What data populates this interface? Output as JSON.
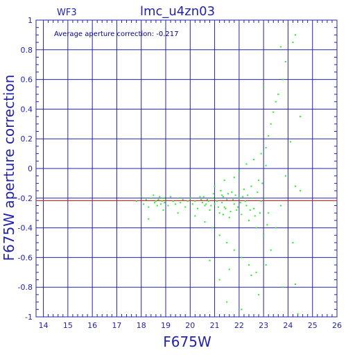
{
  "chart_data": {
    "type": "scatter",
    "title": "lmc_u4zn03",
    "panel_label": "WF3",
    "annotation": "Average aperture correction: -0.217",
    "xlabel": "F675W",
    "ylabel": "F675W  aperture  correction",
    "xlim": [
      13.7,
      26
    ],
    "ylim": [
      -1,
      1
    ],
    "xticks": [
      14,
      15,
      16,
      17,
      18,
      19,
      20,
      21,
      22,
      23,
      24,
      25,
      26
    ],
    "yticks": [
      -1,
      -0.8,
      -0.6,
      -0.4,
      -0.2,
      0,
      0.2,
      0.4,
      0.6,
      0.8,
      1
    ],
    "grid": true,
    "average_line": -0.217,
    "colors": {
      "axes": "#2222aa",
      "points": "#22ee22",
      "average_line": "#cc2222",
      "background": "#ffffff"
    },
    "points": [
      [
        17.8,
        -0.22
      ],
      [
        18.0,
        -0.19
      ],
      [
        18.1,
        -0.24
      ],
      [
        18.2,
        -0.21
      ],
      [
        18.3,
        -0.26
      ],
      [
        18.4,
        -0.2
      ],
      [
        18.5,
        -0.18
      ],
      [
        18.55,
        -0.23
      ],
      [
        18.6,
        -0.22
      ],
      [
        18.65,
        -0.25
      ],
      [
        18.7,
        -0.21
      ],
      [
        18.75,
        -0.19
      ],
      [
        18.8,
        -0.24
      ],
      [
        18.85,
        -0.22
      ],
      [
        18.9,
        -0.2
      ],
      [
        18.95,
        -0.23
      ],
      [
        19.0,
        -0.21
      ],
      [
        19.1,
        -0.25
      ],
      [
        19.2,
        -0.19
      ],
      [
        19.3,
        -0.22
      ],
      [
        19.4,
        -0.24
      ],
      [
        19.5,
        -0.2
      ],
      [
        19.6,
        -0.23
      ],
      [
        19.7,
        -0.21
      ],
      [
        19.8,
        -0.26
      ],
      [
        19.9,
        -0.22
      ],
      [
        20.0,
        -0.2
      ],
      [
        20.1,
        -0.24
      ],
      [
        20.2,
        -0.22
      ],
      [
        20.3,
        -0.27
      ],
      [
        20.4,
        -0.19
      ],
      [
        20.5,
        -0.23
      ],
      [
        20.6,
        -0.25
      ],
      [
        20.7,
        -0.21
      ],
      [
        20.8,
        -0.28
      ],
      [
        20.9,
        -0.2
      ],
      [
        21.0,
        -0.24
      ],
      [
        21.1,
        -0.22
      ],
      [
        21.2,
        -0.3
      ],
      [
        21.3,
        -0.18
      ],
      [
        21.4,
        -0.26
      ],
      [
        21.5,
        -0.21
      ],
      [
        21.6,
        -0.33
      ],
      [
        21.7,
        -0.16
      ],
      [
        21.8,
        -0.24
      ],
      [
        21.9,
        -0.28
      ],
      [
        22.0,
        -0.2
      ],
      [
        22.1,
        -0.31
      ],
      [
        22.2,
        -0.14
      ],
      [
        22.3,
        -0.25
      ],
      [
        22.4,
        -0.35
      ],
      [
        22.5,
        -0.12
      ],
      [
        22.6,
        -0.27
      ],
      [
        22.7,
        -0.4
      ],
      [
        22.8,
        -0.08
      ],
      [
        22.9,
        -0.22
      ],
      [
        23.0,
        -0.45
      ],
      [
        23.1,
        0.02
      ],
      [
        23.2,
        -0.3
      ],
      [
        23.3,
        -0.55
      ],
      [
        18.3,
        -0.34
      ],
      [
        18.9,
        -0.28
      ],
      [
        19.5,
        -0.3
      ],
      [
        20.2,
        -0.32
      ],
      [
        20.6,
        -0.36
      ],
      [
        20.9,
        -0.4
      ],
      [
        21.2,
        -0.45
      ],
      [
        21.5,
        -0.5
      ],
      [
        21.8,
        -0.55
      ],
      [
        22.1,
        -0.6
      ],
      [
        22.4,
        -0.65
      ],
      [
        22.7,
        -0.7
      ],
      [
        21.0,
        -0.12
      ],
      [
        21.4,
        -0.08
      ],
      [
        21.8,
        -0.06
      ],
      [
        22.0,
        -0.02
      ],
      [
        22.3,
        0.03
      ],
      [
        22.6,
        0.06
      ],
      [
        22.9,
        0.1
      ],
      [
        23.1,
        0.14
      ],
      [
        23.2,
        0.22
      ],
      [
        23.3,
        0.3
      ],
      [
        23.4,
        0.38
      ],
      [
        23.5,
        0.45
      ],
      [
        23.0,
        0.55
      ],
      [
        23.6,
        0.5
      ],
      [
        23.8,
        0.6
      ],
      [
        23.9,
        0.72
      ],
      [
        24.2,
        0.85
      ],
      [
        24.3,
        0.9
      ],
      [
        23.7,
        0.82
      ],
      [
        24.5,
        0.35
      ],
      [
        24.1,
        0.18
      ],
      [
        23.9,
        -0.05
      ],
      [
        24.3,
        -0.12
      ],
      [
        24.5,
        -0.15
      ],
      [
        24.2,
        -0.5
      ],
      [
        24.3,
        -0.78
      ],
      [
        24.4,
        -0.98
      ],
      [
        23.8,
        -0.8
      ],
      [
        22.8,
        -0.85
      ],
      [
        22.1,
        -0.95
      ],
      [
        21.5,
        -0.9
      ],
      [
        21.2,
        -0.75
      ],
      [
        20.8,
        -0.62
      ],
      [
        21.6,
        -0.68
      ],
      [
        22.5,
        -0.72
      ],
      [
        23.1,
        -0.65
      ],
      [
        23.5,
        -0.4
      ],
      [
        23.7,
        -0.25
      ],
      [
        21.3,
        -0.23
      ],
      [
        21.35,
        -0.19
      ],
      [
        21.45,
        -0.27
      ],
      [
        21.55,
        -0.17
      ],
      [
        21.65,
        -0.29
      ],
      [
        21.75,
        -0.21
      ],
      [
        21.85,
        -0.18
      ],
      [
        21.95,
        -0.26
      ],
      [
        22.05,
        -0.23
      ],
      [
        22.15,
        -0.19
      ],
      [
        20.45,
        -0.21
      ],
      [
        20.55,
        -0.19
      ],
      [
        20.65,
        -0.24
      ],
      [
        20.75,
        -0.22
      ],
      [
        20.85,
        -0.25
      ],
      [
        20.95,
        -0.17
      ],
      [
        21.05,
        -0.2
      ],
      [
        21.15,
        -0.26
      ],
      [
        21.25,
        -0.15
      ],
      [
        21.35,
        -0.31
      ],
      [
        22.25,
        -0.22
      ],
      [
        22.35,
        -0.18
      ],
      [
        22.45,
        -0.28
      ],
      [
        22.55,
        -0.2
      ],
      [
        22.65,
        -0.32
      ],
      [
        22.75,
        -0.16
      ],
      [
        22.85,
        -0.3
      ],
      [
        22.95,
        -0.1
      ],
      [
        23.05,
        -0.2
      ],
      [
        23.15,
        -0.38
      ]
    ]
  }
}
